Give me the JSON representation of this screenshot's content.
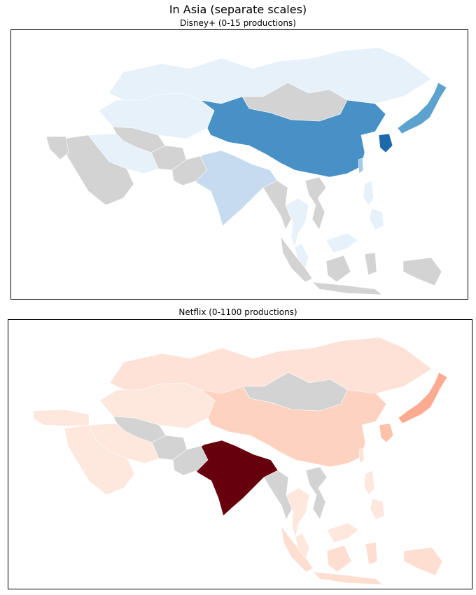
{
  "figure": {
    "title": "In Asia (separate scales)"
  },
  "no_data_color": "#d3d3d3",
  "maps": [
    {
      "id": "disney",
      "subtitle": "Disney+ (0-15 productions)",
      "colormap": "Blues",
      "range": [
        0,
        15
      ],
      "countries": [
        {
          "name": "china",
          "level": 0.62
        },
        {
          "name": "south-korea",
          "level": 0.78
        },
        {
          "name": "japan",
          "level": 0.55
        },
        {
          "name": "taiwan",
          "level": 0.35
        },
        {
          "name": "india",
          "level": 0.25
        },
        {
          "name": "russia",
          "level": 0.08
        },
        {
          "name": "kazakhstan",
          "level": 0.08
        },
        {
          "name": "iran",
          "level": 0.08
        },
        {
          "name": "thailand",
          "level": 0.08
        },
        {
          "name": "malaysia",
          "level": 0.08
        },
        {
          "name": "philippines",
          "level": 0.08
        },
        {
          "name": "mongolia",
          "level": null
        },
        {
          "name": "saudi-arabia",
          "level": null
        },
        {
          "name": "indonesia",
          "level": null
        },
        {
          "name": "central-asia",
          "level": null
        },
        {
          "name": "myanmar",
          "level": null
        },
        {
          "name": "vietnam",
          "level": null
        },
        {
          "name": "pakistan",
          "level": null
        },
        {
          "name": "afghanistan",
          "level": null
        },
        {
          "name": "middle-east",
          "level": null
        }
      ]
    },
    {
      "id": "netflix",
      "subtitle": "Netflix (0-1100 productions)",
      "colormap": "Reds",
      "range": [
        0,
        1100
      ],
      "countries": [
        {
          "name": "india",
          "level": 1.0
        },
        {
          "name": "japan",
          "level": 0.3
        },
        {
          "name": "south-korea",
          "level": 0.22
        },
        {
          "name": "china",
          "level": 0.15
        },
        {
          "name": "russia",
          "level": 0.08
        },
        {
          "name": "kazakhstan",
          "level": 0.06
        },
        {
          "name": "saudi-arabia",
          "level": 0.06
        },
        {
          "name": "iran",
          "level": 0.06
        },
        {
          "name": "turkey",
          "level": 0.06
        },
        {
          "name": "indonesia",
          "level": 0.1
        },
        {
          "name": "thailand",
          "level": 0.06
        },
        {
          "name": "philippines",
          "level": 0.06
        },
        {
          "name": "malaysia",
          "level": 0.06
        },
        {
          "name": "taiwan",
          "level": 0.08
        },
        {
          "name": "mongolia",
          "level": null
        },
        {
          "name": "central-asia",
          "level": null
        },
        {
          "name": "myanmar",
          "level": null
        },
        {
          "name": "vietnam",
          "level": null
        },
        {
          "name": "pakistan",
          "level": null
        },
        {
          "name": "afghanistan",
          "level": null
        }
      ]
    }
  ]
}
